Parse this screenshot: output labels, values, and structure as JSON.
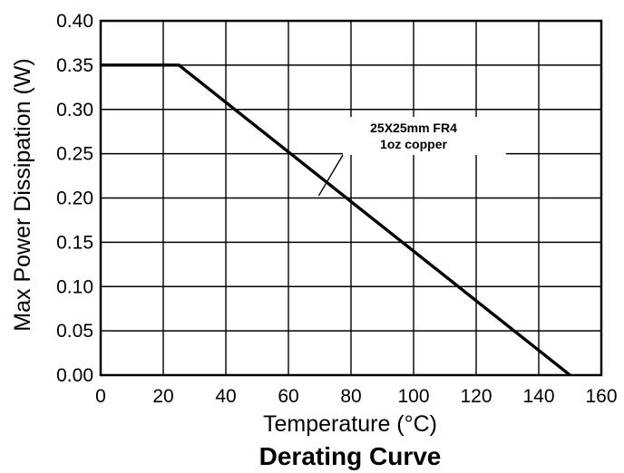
{
  "chart_data": {
    "type": "line",
    "title": "Derating Curve",
    "xlabel": "Temperature (°C)",
    "ylabel": "Max Power Dissipation (W)",
    "xlim": [
      0,
      160
    ],
    "ylim": [
      0,
      0.4
    ],
    "x_ticks": [
      "0",
      "20",
      "40",
      "60",
      "80",
      "100",
      "120",
      "140",
      "160"
    ],
    "y_ticks": [
      "0.00",
      "0.05",
      "0.10",
      "0.15",
      "0.20",
      "0.25",
      "0.30",
      "0.35",
      "0.40"
    ],
    "grid": true,
    "series": [
      {
        "x": [
          0,
          25,
          150
        ],
        "y": [
          0.35,
          0.35,
          0
        ]
      }
    ],
    "annotation": {
      "lines": [
        "25X25mm FR4",
        "1oz copper"
      ],
      "points_to": {
        "x": 72,
        "y": 0.225
      }
    }
  }
}
